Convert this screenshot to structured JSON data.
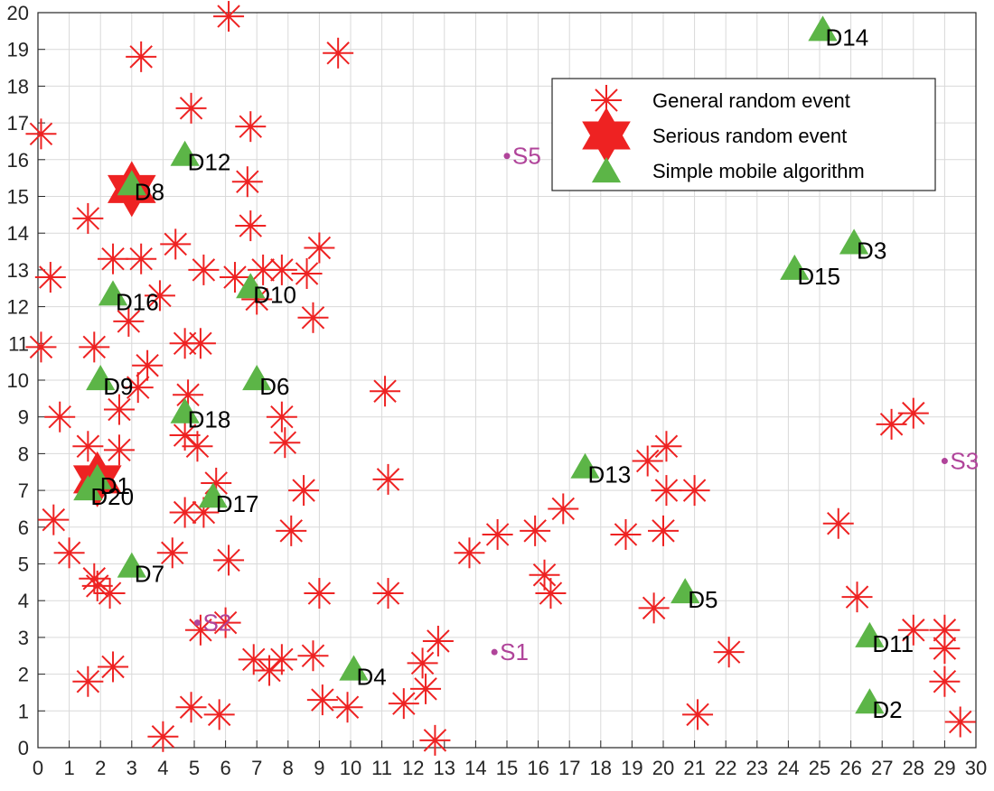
{
  "chart_data": {
    "type": "scatter",
    "title": "",
    "xlabel": "",
    "ylabel": "",
    "xlim": [
      0,
      30
    ],
    "ylim": [
      0,
      20
    ],
    "x_ticks": [
      "0",
      "1",
      "2",
      "3",
      "4",
      "5",
      "6",
      "7",
      "8",
      "9",
      "10",
      "11",
      "12",
      "13",
      "14",
      "15",
      "16",
      "17",
      "18",
      "19",
      "20",
      "21",
      "22",
      "23",
      "24",
      "25",
      "26",
      "27",
      "28",
      "29",
      "30"
    ],
    "y_ticks": [
      "0",
      "1",
      "2",
      "3",
      "4",
      "5",
      "6",
      "7",
      "8",
      "9",
      "10",
      "11",
      "12",
      "13",
      "14",
      "15",
      "16",
      "17",
      "18",
      "19",
      "20"
    ],
    "grid": true,
    "legend": {
      "placement": "top-right",
      "entries": [
        "General random event",
        "Serious random event",
        "Simple mobile algorithm"
      ]
    },
    "colors": {
      "general": "#ee2222",
      "serious": "#ee2222",
      "mobile": "#5cb547",
      "sink": "#b0449a",
      "grid": "#d9d9d9",
      "axis": "#262626"
    },
    "series": [
      {
        "name": "General random event",
        "marker": "asterisk",
        "points": [
          [
            0.1,
            16.7
          ],
          [
            0.4,
            12.8
          ],
          [
            0.1,
            10.9
          ],
          [
            0.7,
            9.0
          ],
          [
            0.5,
            6.2
          ],
          [
            1.0,
            5.3
          ],
          [
            1.6,
            1.8
          ],
          [
            1.8,
            4.6
          ],
          [
            1.9,
            4.4
          ],
          [
            2.3,
            4.2
          ],
          [
            2.4,
            2.2
          ],
          [
            1.8,
            10.9
          ],
          [
            1.6,
            14.4
          ],
          [
            2.4,
            13.3
          ],
          [
            3.3,
            13.3
          ],
          [
            2.9,
            11.6
          ],
          [
            3.5,
            10.4
          ],
          [
            3.2,
            9.8
          ],
          [
            2.6,
            9.2
          ],
          [
            2.6,
            8.1
          ],
          [
            1.6,
            8.2
          ],
          [
            3.3,
            18.8
          ],
          [
            4.4,
            13.7
          ],
          [
            3.9,
            12.3
          ],
          [
            4.9,
            17.4
          ],
          [
            4.7,
            11.0
          ],
          [
            5.2,
            11.0
          ],
          [
            4.8,
            9.6
          ],
          [
            4.7,
            8.5
          ],
          [
            5.1,
            8.2
          ],
          [
            4.7,
            6.4
          ],
          [
            5.3,
            6.4
          ],
          [
            5.7,
            7.2
          ],
          [
            4.3,
            5.3
          ],
          [
            6.1,
            5.1
          ],
          [
            5.2,
            3.2
          ],
          [
            6.0,
            3.4
          ],
          [
            4.9,
            1.1
          ],
          [
            5.8,
            0.9
          ],
          [
            4.0,
            0.3
          ],
          [
            5.3,
            13.0
          ],
          [
            6.1,
            19.9
          ],
          [
            6.3,
            12.8
          ],
          [
            6.8,
            16.9
          ],
          [
            6.7,
            15.4
          ],
          [
            6.8,
            14.2
          ],
          [
            7.0,
            12.2
          ],
          [
            7.2,
            13.0
          ],
          [
            7.8,
            13.0
          ],
          [
            8.6,
            12.9
          ],
          [
            9.0,
            13.6
          ],
          [
            8.8,
            11.7
          ],
          [
            7.8,
            9.0
          ],
          [
            7.9,
            8.3
          ],
          [
            8.5,
            7.0
          ],
          [
            8.1,
            5.9
          ],
          [
            6.9,
            2.4
          ],
          [
            7.4,
            2.1
          ],
          [
            7.8,
            2.4
          ],
          [
            8.8,
            2.5
          ],
          [
            9.0,
            4.2
          ],
          [
            9.1,
            1.3
          ],
          [
            9.9,
            1.1
          ],
          [
            9.6,
            18.9
          ],
          [
            11.1,
            9.7
          ],
          [
            11.2,
            7.3
          ],
          [
            11.2,
            4.2
          ],
          [
            11.7,
            1.2
          ],
          [
            12.3,
            2.3
          ],
          [
            12.4,
            1.6
          ],
          [
            12.8,
            2.9
          ],
          [
            12.7,
            0.2
          ],
          [
            13.8,
            5.3
          ],
          [
            14.7,
            5.8
          ],
          [
            15.9,
            5.9
          ],
          [
            16.2,
            4.7
          ],
          [
            16.4,
            4.2
          ],
          [
            16.8,
            6.5
          ],
          [
            18.8,
            5.8
          ],
          [
            19.5,
            7.8
          ],
          [
            20.1,
            8.2
          ],
          [
            20.1,
            7.0
          ],
          [
            20.0,
            5.9
          ],
          [
            19.7,
            3.8
          ],
          [
            21.0,
            7.0
          ],
          [
            21.1,
            0.9
          ],
          [
            22.1,
            2.6
          ],
          [
            25.6,
            6.1
          ],
          [
            26.2,
            4.1
          ],
          [
            27.3,
            8.8
          ],
          [
            28.0,
            9.1
          ],
          [
            28.0,
            3.2
          ],
          [
            29.0,
            3.2
          ],
          [
            29.0,
            2.7
          ],
          [
            29.0,
            1.8
          ],
          [
            29.5,
            0.7
          ]
        ]
      },
      {
        "name": "Serious random event",
        "marker": "hexagram",
        "points": [
          [
            3.0,
            15.2
          ],
          [
            1.9,
            7.3
          ]
        ]
      },
      {
        "name": "Simple mobile algorithm",
        "marker": "triangle",
        "points": [
          [
            1.9,
            7.3
          ],
          [
            26.6,
            1.2
          ],
          [
            26.1,
            13.7
          ],
          [
            10.1,
            2.1
          ],
          [
            20.7,
            4.2
          ],
          [
            7.0,
            10.0
          ],
          [
            3.0,
            4.9
          ],
          [
            3.0,
            15.3
          ],
          [
            2.0,
            10.0
          ],
          [
            1.6,
            7.0
          ],
          [
            26.6,
            3.0
          ],
          [
            4.7,
            16.1
          ],
          [
            17.5,
            7.6
          ],
          [
            25.1,
            19.5
          ],
          [
            24.2,
            13.0
          ],
          [
            2.4,
            12.3
          ],
          [
            5.6,
            6.8
          ],
          [
            4.7,
            9.1
          ],
          [
            6.8,
            12.5
          ]
        ]
      }
    ],
    "node_labels": [
      {
        "text": "D1",
        "x": 1.9,
        "y": 7.3
      },
      {
        "text": "D2",
        "x": 26.6,
        "y": 1.2
      },
      {
        "text": "D3",
        "x": 26.1,
        "y": 13.7
      },
      {
        "text": "D4",
        "x": 10.1,
        "y": 2.1
      },
      {
        "text": "D5",
        "x": 20.7,
        "y": 4.2
      },
      {
        "text": "D6",
        "x": 7.0,
        "y": 10.0
      },
      {
        "text": "D7",
        "x": 3.0,
        "y": 4.9
      },
      {
        "text": "D8",
        "x": 3.0,
        "y": 15.3
      },
      {
        "text": "D9",
        "x": 2.0,
        "y": 10.0
      },
      {
        "text": "D10",
        "x": 6.8,
        "y": 12.5
      },
      {
        "text": "D11",
        "x": 26.6,
        "y": 3.0
      },
      {
        "text": "D12",
        "x": 4.7,
        "y": 16.1
      },
      {
        "text": "D13",
        "x": 17.5,
        "y": 7.6
      },
      {
        "text": "D14",
        "x": 25.1,
        "y": 19.5
      },
      {
        "text": "D15",
        "x": 24.2,
        "y": 13.0
      },
      {
        "text": "D16",
        "x": 2.4,
        "y": 12.3
      },
      {
        "text": "D17",
        "x": 5.6,
        "y": 6.8
      },
      {
        "text": "D18",
        "x": 4.7,
        "y": 9.1
      },
      {
        "text": "D20",
        "x": 1.6,
        "y": 7.0
      }
    ],
    "sinks": [
      {
        "text": "S1",
        "x": 14.6,
        "y": 2.6
      },
      {
        "text": "S2",
        "x": 5.1,
        "y": 3.4
      },
      {
        "text": "S3",
        "x": 29.0,
        "y": 7.8
      },
      {
        "text": "S5",
        "x": 15.0,
        "y": 16.1
      }
    ]
  }
}
